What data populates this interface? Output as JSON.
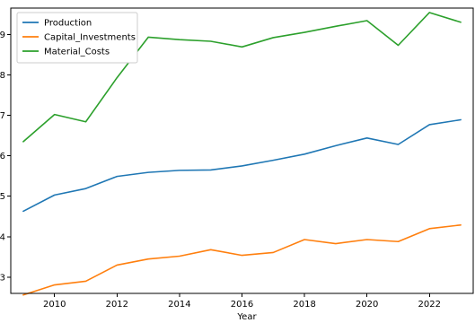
{
  "chart_data": {
    "type": "line",
    "xlabel": "Year",
    "ylabel": "",
    "xlim": [
      2008.6,
      2023.4
    ],
    "ylim": [
      2.6,
      9.65
    ],
    "x": [
      2009,
      2010,
      2011,
      2012,
      2013,
      2014,
      2015,
      2016,
      2017,
      2018,
      2019,
      2020,
      2021,
      2022,
      2023
    ],
    "x_ticks": [
      2010,
      2012,
      2014,
      2016,
      2018,
      2020,
      2022
    ],
    "y_ticks": [
      3,
      4,
      5,
      6,
      7,
      8,
      9
    ],
    "x_tick_labels": [
      "2010",
      "2012",
      "2014",
      "2016",
      "2018",
      "2020",
      "2022"
    ],
    "y_tick_labels": [
      "3",
      "4",
      "5",
      "6",
      "7",
      "8",
      "9"
    ],
    "legend": {
      "placement": "upper-left"
    },
    "grid": false,
    "series": [
      {
        "name": "Production",
        "color": "#1f77b4",
        "values": [
          4.63,
          5.03,
          5.19,
          5.49,
          5.59,
          5.64,
          5.65,
          5.75,
          5.89,
          6.04,
          6.25,
          6.44,
          6.28,
          6.77,
          6.89
        ]
      },
      {
        "name": "Capital_Investments",
        "color": "#ff7f0e",
        "values": [
          2.56,
          2.81,
          2.9,
          3.3,
          3.45,
          3.52,
          3.68,
          3.54,
          3.61,
          3.93,
          3.83,
          3.93,
          3.88,
          4.2,
          4.29
        ]
      },
      {
        "name": "Material_Costs",
        "color": "#2ca02c",
        "values": [
          6.35,
          7.02,
          6.84,
          7.93,
          8.93,
          8.87,
          8.83,
          8.69,
          8.92,
          9.05,
          9.2,
          9.34,
          8.73,
          9.54,
          9.3
        ]
      }
    ]
  }
}
